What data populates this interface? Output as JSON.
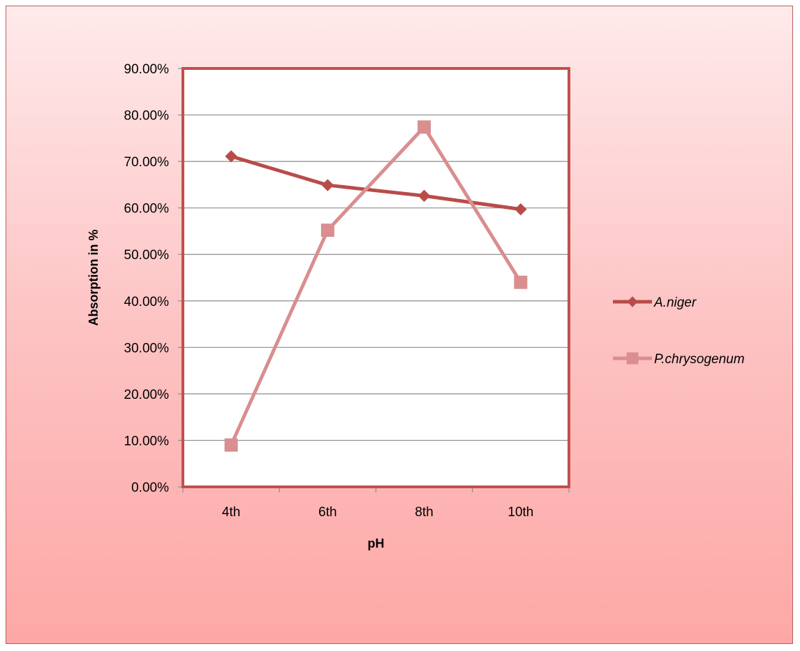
{
  "chart_data": {
    "type": "line",
    "categories": [
      "4th",
      "6th",
      "8th",
      "10th"
    ],
    "series": [
      {
        "name": "A.niger",
        "values": [
          0.711,
          0.649,
          0.626,
          0.597
        ],
        "color": "#b84c4a",
        "marker": "diamond"
      },
      {
        "name": "P.chrysogenum",
        "values": [
          0.09,
          0.552,
          0.774,
          0.44
        ],
        "color": "#d98e8f",
        "marker": "square"
      }
    ],
    "xlabel": "pH",
    "ylabel": "Absorption in %",
    "ylim": [
      0,
      0.9
    ],
    "yticks": [
      "0.00%",
      "10.00%",
      "20.00%",
      "30.00%",
      "40.00%",
      "50.00%",
      "60.00%",
      "70.00%",
      "80.00%",
      "90.00%"
    ],
    "grid": true,
    "legend_position": "right",
    "plot_background": "#ffffff",
    "plot_border_color": "#c0504d"
  }
}
